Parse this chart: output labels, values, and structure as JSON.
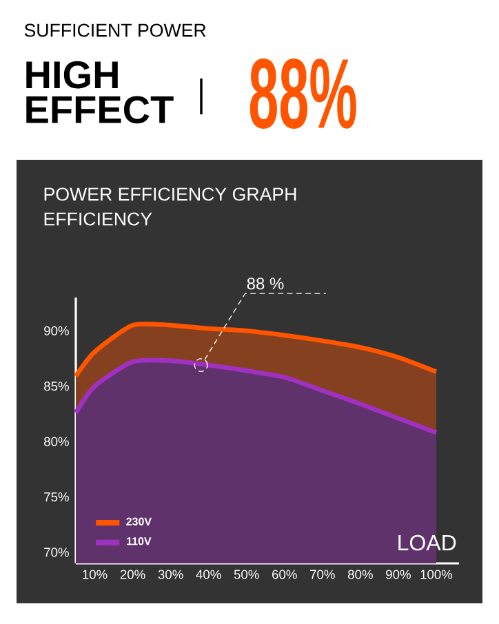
{
  "chart_data": {
    "type": "area",
    "title": "POWER EFFICIENCY GRAPH",
    "ylabel": "EFFICIENCY",
    "xlabel": "LOAD",
    "annotations": [
      "SUFFICIENT POWER",
      "HIGH EFFECT",
      "88%",
      {
        "text": "88 %",
        "x": 38,
        "y": 86.9
      }
    ],
    "x": [
      5,
      10,
      20,
      30,
      40,
      50,
      60,
      70,
      80,
      90,
      100
    ],
    "series": [
      {
        "name": "230V",
        "color": "#ff5500",
        "values": [
          85.9,
          88.1,
          90.5,
          90.5,
          90.2,
          90.0,
          89.6,
          89.1,
          88.5,
          87.6,
          86.3
        ]
      },
      {
        "name": "110V",
        "color": "#a030c0",
        "values": [
          82.6,
          85.0,
          87.2,
          87.3,
          86.9,
          86.4,
          85.8,
          84.6,
          83.4,
          82.1,
          80.8
        ]
      }
    ],
    "xlim": [
      5,
      106
    ],
    "ylim": [
      69,
      93
    ],
    "xticks": [
      {
        "value": 10,
        "label": "10%"
      },
      {
        "value": 20,
        "label": "20%"
      },
      {
        "value": 30,
        "label": "30%"
      },
      {
        "value": 40,
        "label": "40%"
      },
      {
        "value": 50,
        "label": "50%"
      },
      {
        "value": 60,
        "label": "60%"
      },
      {
        "value": 70,
        "label": "70%"
      },
      {
        "value": 80,
        "label": "80%"
      },
      {
        "value": 90,
        "label": "90%"
      },
      {
        "value": 100,
        "label": "100%"
      }
    ],
    "yticks": [
      {
        "value": 70,
        "label": "70%"
      },
      {
        "value": 75,
        "label": "75%"
      },
      {
        "value": 80,
        "label": "80%"
      },
      {
        "value": 85,
        "label": "85%"
      },
      {
        "value": 90,
        "label": "90%"
      }
    ],
    "legend": "bottom left"
  }
}
